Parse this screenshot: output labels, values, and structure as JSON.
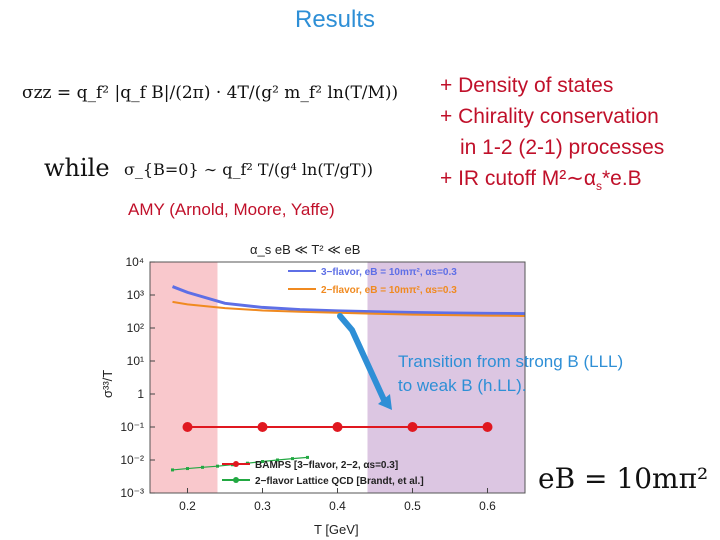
{
  "slide": {
    "title": "Results",
    "bullets": [
      "+ Density of states",
      "+ Chirality conservation",
      "in 1-2 (2-1) processes",
      "+ IR cutoff M²∼α"
    ],
    "bullet_suffix_sub": "s",
    "bullet_suffix_tail": "*e.B",
    "amy_caption": "AMY (Arnold, Moore, Yaffe)",
    "transition_caption": [
      "Transition from strong B (LLL)",
      "to weak B (h.LL)."
    ],
    "equation_main": "σzz = q_f² |q_f B|/(2π) · 4T/(g² m_f² ln(T/M))",
    "equation_while": "while",
    "equation_weak": "σ_{B=0} ∼ q_f² T/(g⁴ ln(T/gT))",
    "eb_label": "eB = 10mπ²"
  },
  "colors": {
    "accent_blue": "#2e8fd6",
    "accent_red": "#c0102a",
    "pink_band": "#f9c8cc",
    "purple_band": "#dcc6e2",
    "series_blue": "#5e6fe6",
    "series_orange": "#f08a20",
    "series_red": "#e01820",
    "series_green": "#22a842"
  },
  "chart_data": {
    "type": "line",
    "title": "α_s eB ≪ T² ≪ eB",
    "xlabel": "T [GeV]",
    "ylabel": "σ³³/T",
    "xlim": [
      0.15,
      0.65
    ],
    "ylim_log10": [
      -3,
      4
    ],
    "yscale": "log",
    "x_ticks": [
      "0.2",
      "0.3",
      "0.4",
      "0.5",
      "0.6"
    ],
    "y_ticks": [
      "10⁴",
      "10³",
      "10²",
      "10¹",
      "1",
      "10⁻¹",
      "10⁻²",
      "10⁻³"
    ],
    "shaded_regions": [
      {
        "name": "strong field",
        "x": [
          0.15,
          0.24
        ]
      },
      {
        "name": "weak field",
        "x": [
          0.44,
          0.65
        ]
      }
    ],
    "series": [
      {
        "name": "3−flavor, eB = 10mπ², αs=0.3",
        "x": [
          0.18,
          0.2,
          0.25,
          0.3,
          0.35,
          0.4,
          0.45,
          0.5,
          0.55,
          0.6,
          0.65
        ],
        "y": [
          1800,
          1200,
          560,
          420,
          360,
          330,
          310,
          295,
          285,
          278,
          272
        ]
      },
      {
        "name": "2−flavor, eB = 10mπ², αs=0.3",
        "x": [
          0.18,
          0.2,
          0.25,
          0.3,
          0.35,
          0.4,
          0.45,
          0.5,
          0.55,
          0.6,
          0.65
        ],
        "y": [
          620,
          520,
          400,
          340,
          310,
          290,
          270,
          255,
          245,
          238,
          232
        ]
      },
      {
        "name": "BAMPS [3−flavor, 2−2, αs=0.3]",
        "x": [
          0.2,
          0.3,
          0.4,
          0.5,
          0.6
        ],
        "y": [
          0.1,
          0.1,
          0.1,
          0.1,
          0.1
        ]
      },
      {
        "name": "2−flavor Lattice QCD [Brandt, et al.]",
        "x": [
          0.18,
          0.2,
          0.22,
          0.24,
          0.26,
          0.28,
          0.3,
          0.32,
          0.34,
          0.36
        ],
        "y": [
          0.005,
          0.0055,
          0.006,
          0.0065,
          0.0072,
          0.008,
          0.009,
          0.01,
          0.011,
          0.012
        ]
      }
    ]
  }
}
